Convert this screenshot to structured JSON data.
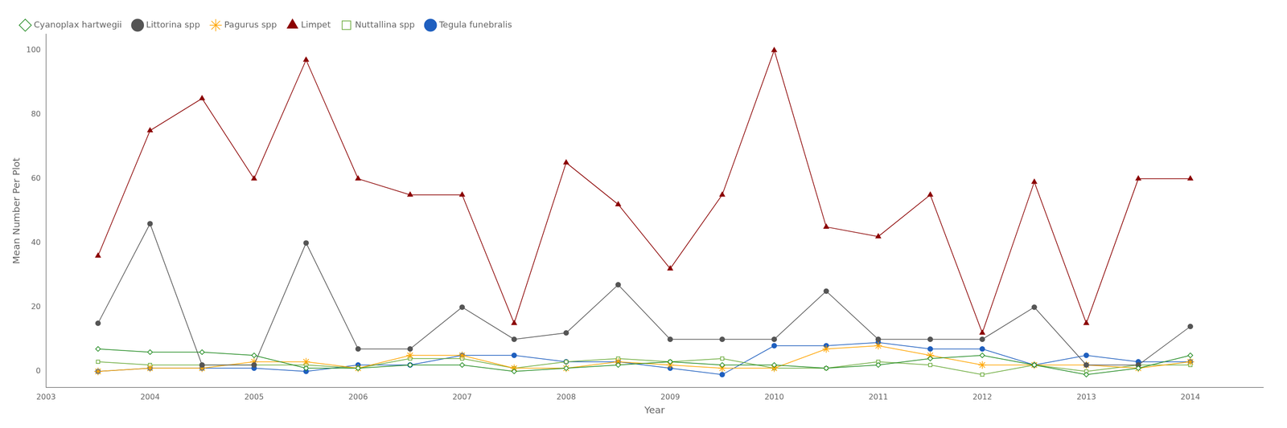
{
  "chart_data": {
    "type": "line",
    "xlabel": "Year",
    "ylabel": "Mean Number Per Plot",
    "xlim": [
      2003.0,
      2014.7
    ],
    "ylim": [
      -5,
      105
    ],
    "xticks": [
      2003,
      2004,
      2005,
      2006,
      2007,
      2008,
      2009,
      2010,
      2011,
      2012,
      2013,
      2014
    ],
    "yticks": [
      0,
      20,
      40,
      60,
      80,
      100
    ],
    "grid": false,
    "legend": "upper left",
    "x": [
      2003.5,
      2004.0,
      2004.5,
      2005.0,
      2005.5,
      2006.0,
      2006.5,
      2007.0,
      2007.5,
      2008.0,
      2008.5,
      2009.0,
      2009.5,
      2010.0,
      2010.5,
      2011.0,
      2011.5,
      2012.0,
      2012.5,
      2013.0,
      2013.5,
      2014.0
    ],
    "series": [
      {
        "name": "Cyanoplax hartwegii",
        "color": "#228B22",
        "marker": "open diamond",
        "values": [
          7,
          6,
          6,
          5,
          1,
          1,
          2,
          2,
          0,
          1,
          2,
          3,
          2,
          2,
          1,
          2,
          4,
          5,
          2,
          -1,
          1,
          5
        ]
      },
      {
        "name": "Littorina spp",
        "color": "#555555",
        "marker": "circle",
        "values": [
          15,
          46,
          2,
          2,
          40,
          7,
          7,
          20,
          10,
          12,
          27,
          10,
          10,
          10,
          25,
          10,
          10,
          10,
          20,
          2,
          2,
          14
        ]
      },
      {
        "name": "Pagurus spp",
        "color": "#FFA500",
        "marker": "star",
        "values": [
          0,
          1,
          1,
          3,
          3,
          1,
          5,
          5,
          1,
          1,
          3,
          2,
          1,
          1,
          7,
          8,
          5,
          2,
          2,
          2,
          1,
          3
        ]
      },
      {
        "name": "Limpet",
        "color": "#8B0000",
        "marker": "triangle",
        "values": [
          36,
          75,
          85,
          60,
          97,
          60,
          55,
          55,
          15,
          65,
          52,
          32,
          55,
          100,
          45,
          42,
          55,
          12,
          59,
          15,
          60,
          60
        ]
      },
      {
        "name": "Nuttallina spp",
        "color": "#6aaa3a",
        "marker": "open square",
        "values": [
          3,
          2,
          2,
          2,
          2,
          1,
          4,
          4,
          1,
          3,
          4,
          3,
          4,
          1,
          1,
          3,
          2,
          -1,
          2,
          0,
          2,
          2
        ]
      },
      {
        "name": "Tegula funebralis",
        "color": "#1F5FBF",
        "marker": "circle",
        "values": [
          0,
          1,
          1,
          1,
          0,
          2,
          2,
          5,
          5,
          3,
          3,
          1,
          -1,
          8,
          8,
          9,
          7,
          7,
          2,
          5,
          3,
          3
        ]
      }
    ]
  }
}
